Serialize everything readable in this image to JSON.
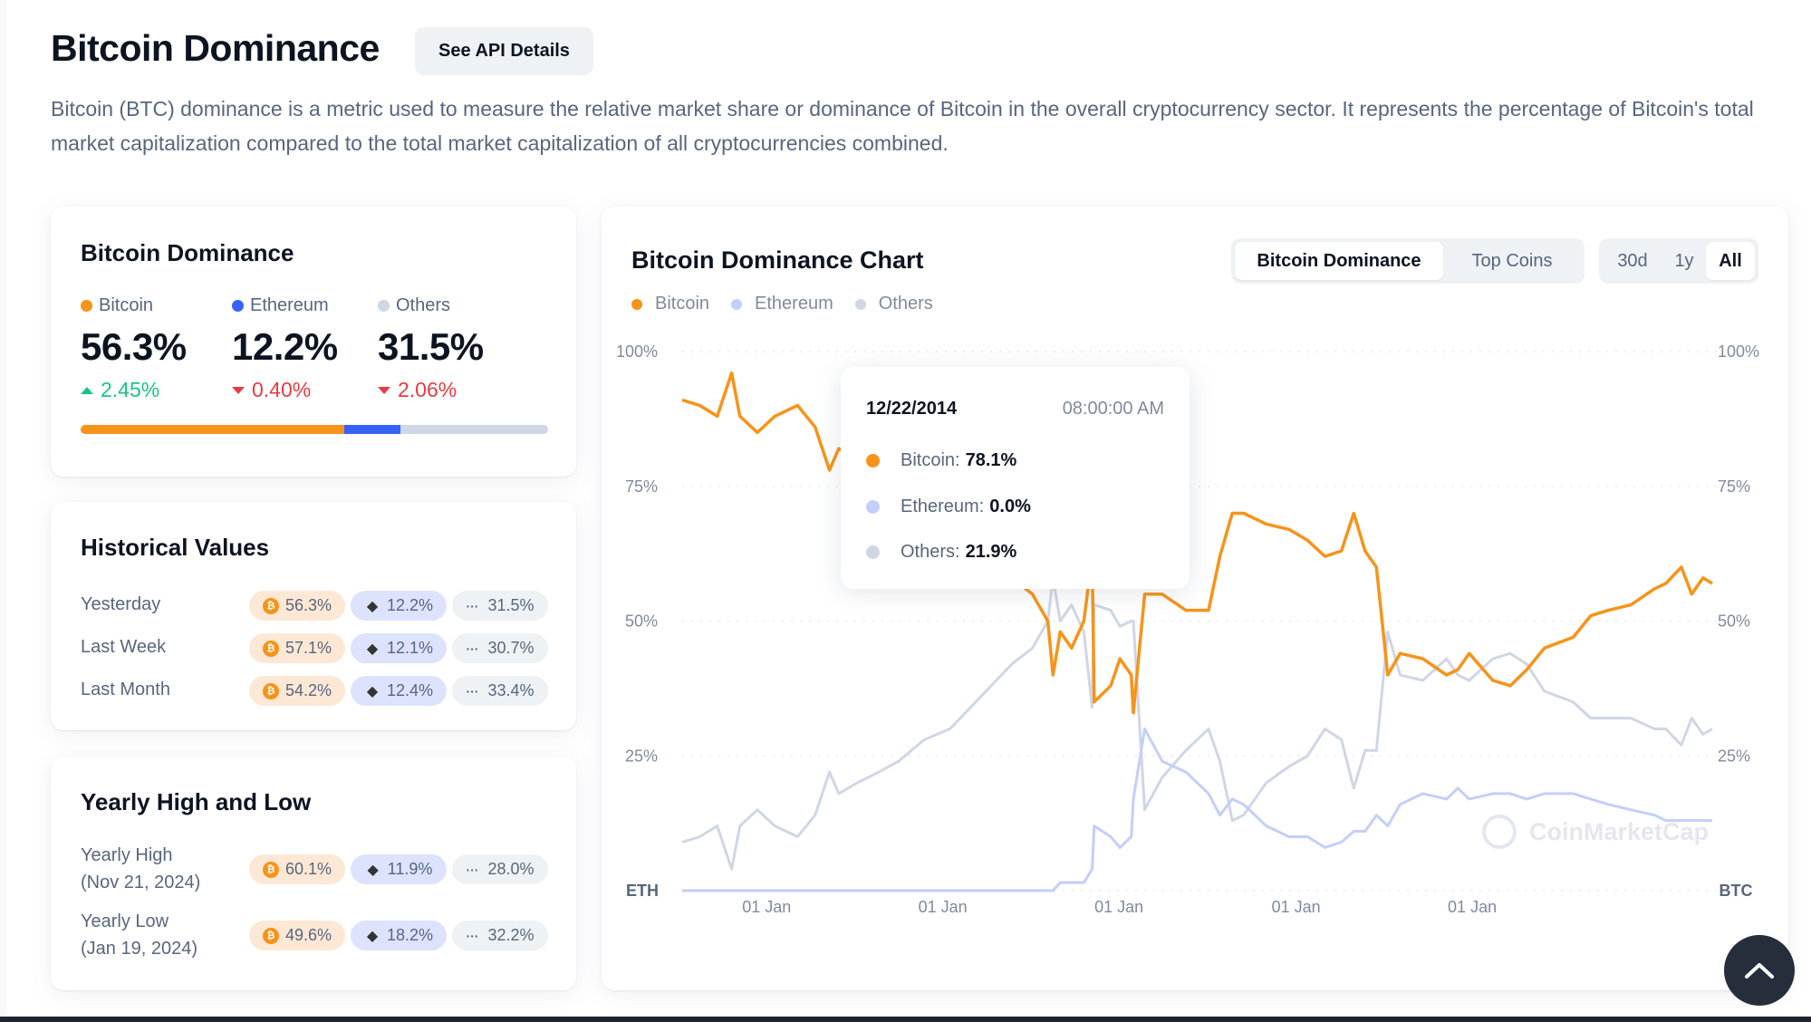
{
  "header": {
    "title": "Bitcoin Dominance",
    "api_button": "See API Details",
    "description": "Bitcoin (BTC) dominance is a metric used to measure the relative market share or dominance of Bitcoin in the overall cryptocurrency sector. It represents the percentage of Bitcoin's total market capitalization compared to the total market capitalization of all cryptocurrencies combined."
  },
  "colors": {
    "bitcoin": "#f7931a",
    "ethereum": "#3861fb",
    "ethereum_line": "#c3cffa",
    "others": "#cfd6e4",
    "up": "#16c784",
    "down": "#ea3943"
  },
  "dominance_card": {
    "title": "Bitcoin Dominance",
    "items": [
      {
        "label": "Bitcoin",
        "value": "56.3%",
        "change": "2.45%",
        "direction": "up",
        "share": 56.3
      },
      {
        "label": "Ethereum",
        "value": "12.2%",
        "change": "0.40%",
        "direction": "down",
        "share": 12.2
      },
      {
        "label": "Others",
        "value": "31.5%",
        "change": "2.06%",
        "direction": "down",
        "share": 31.5
      }
    ]
  },
  "historical_card": {
    "title": "Historical Values",
    "rows": [
      {
        "label": "Yesterday",
        "btc": "56.3%",
        "eth": "12.2%",
        "others": "31.5%"
      },
      {
        "label": "Last Week",
        "btc": "57.1%",
        "eth": "12.1%",
        "others": "30.7%"
      },
      {
        "label": "Last Month",
        "btc": "54.2%",
        "eth": "12.4%",
        "others": "33.4%"
      }
    ]
  },
  "yearly_card": {
    "title": "Yearly High and Low",
    "rows": [
      {
        "label": "Yearly High",
        "date": "(Nov 21, 2024)",
        "btc": "60.1%",
        "eth": "11.9%",
        "others": "28.0%"
      },
      {
        "label": "Yearly Low",
        "date": "(Jan 19, 2024)",
        "btc": "49.6%",
        "eth": "18.2%",
        "others": "32.2%"
      }
    ]
  },
  "chart_panel": {
    "title": "Bitcoin Dominance Chart",
    "type_tabs": [
      {
        "label": "Bitcoin Dominance",
        "active": true
      },
      {
        "label": "Top Coins",
        "active": false
      }
    ],
    "range_tabs": [
      {
        "label": "30d",
        "active": false
      },
      {
        "label": "1y",
        "active": false
      },
      {
        "label": "All",
        "active": true
      }
    ],
    "tooltip": {
      "date": "12/22/2014",
      "time": "08:00:00 AM",
      "rows": [
        {
          "label": "Bitcoin:",
          "value": "78.1%"
        },
        {
          "label": "Ethereum:",
          "value": "0.0%"
        },
        {
          "label": "Others:",
          "value": "21.9%"
        }
      ]
    },
    "watermark": "CoinMarketCap",
    "scroll_top_icon": "chevron-up-icon"
  },
  "chart_data": {
    "type": "line",
    "title": "Bitcoin Dominance Chart",
    "xlabel": "",
    "ylabel": "",
    "ylim": [
      0,
      100
    ],
    "y_ticks": [
      "100%",
      "75%",
      "50%",
      "25%"
    ],
    "y_axis_left_label": "ETH",
    "y_axis_right_label": "BTC",
    "x_tick_labels": [
      "01 Jan",
      "01 Jan",
      "01 Jan",
      "01 Jan",
      "01 Jan"
    ],
    "x_tick_positions": [
      0.082,
      0.253,
      0.424,
      0.596,
      0.767
    ],
    "grid": true,
    "legend": [
      "Bitcoin",
      "Ethereum",
      "Others"
    ],
    "legend_position": "top-left",
    "x": [
      0,
      0.017,
      0.034,
      0.048,
      0.056,
      0.073,
      0.09,
      0.112,
      0.129,
      0.143,
      0.152,
      0.17,
      0.19,
      0.21,
      0.235,
      0.26,
      0.28,
      0.3,
      0.32,
      0.34,
      0.355,
      0.36,
      0.367,
      0.378,
      0.39,
      0.398,
      0.4,
      0.416,
      0.425,
      0.436,
      0.438,
      0.449,
      0.466,
      0.489,
      0.511,
      0.522,
      0.534,
      0.545,
      0.567,
      0.589,
      0.607,
      0.624,
      0.64,
      0.652,
      0.663,
      0.674,
      0.685,
      0.697,
      0.719,
      0.742,
      0.753,
      0.764,
      0.787,
      0.804,
      0.82,
      0.837,
      0.865,
      0.882,
      0.899,
      0.921,
      0.944,
      0.955,
      0.97,
      0.98,
      0.991,
      1.0
    ],
    "series": [
      {
        "name": "Bitcoin",
        "values": [
          91,
          90,
          88,
          96,
          88,
          85,
          88,
          90,
          86,
          78,
          82,
          80,
          78.1,
          76,
          72,
          70,
          66,
          62,
          58,
          55,
          50,
          40,
          48,
          45,
          50,
          62,
          35,
          38,
          43,
          40,
          33,
          55,
          55,
          52,
          52,
          62,
          70,
          70,
          68,
          67,
          65,
          62,
          63,
          70,
          63,
          60,
          40,
          44,
          43,
          40,
          41,
          44,
          39,
          38,
          41,
          45,
          47,
          51,
          52,
          53,
          56,
          57,
          60,
          55,
          58,
          57
        ]
      },
      {
        "name": "Ethereum",
        "values": [
          0,
          0,
          0,
          0,
          0,
          0,
          0,
          0,
          0,
          0,
          0,
          0,
          0,
          0,
          0,
          0,
          0,
          0,
          0,
          0,
          0,
          0,
          1.5,
          1.5,
          1.5,
          4,
          12,
          10,
          8,
          10,
          17,
          30,
          24,
          22,
          18,
          14,
          17,
          16,
          12,
          10,
          10,
          8,
          9,
          11,
          11,
          14,
          12,
          16,
          18,
          17,
          19,
          17,
          18,
          18,
          17,
          18,
          18,
          17,
          16,
          15,
          14,
          13,
          13,
          13,
          13,
          13
        ]
      },
      {
        "name": "Others",
        "values": [
          9,
          10,
          12,
          4,
          12,
          15,
          12,
          10,
          14,
          22,
          18,
          20,
          21.9,
          24,
          28,
          30,
          34,
          38,
          42,
          45,
          50,
          58,
          50,
          53,
          48,
          34,
          53,
          52,
          49,
          50,
          50,
          15,
          21,
          26,
          30,
          24,
          13,
          14,
          20,
          23,
          25,
          30,
          28,
          19,
          26,
          26,
          48,
          40,
          39,
          43,
          40,
          39,
          43,
          44,
          42,
          37,
          35,
          32,
          32,
          32,
          30,
          30,
          27,
          32,
          29,
          30
        ]
      }
    ]
  }
}
